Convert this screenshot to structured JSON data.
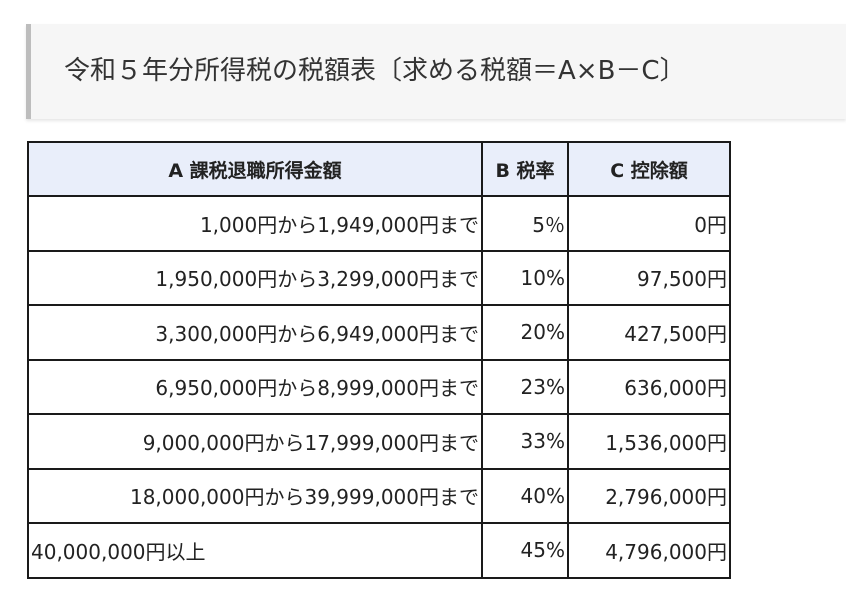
{
  "title": "令和５年分所得税の税額表〔求める税額＝A×B－C〕",
  "table": {
    "headers": [
      "A 課税退職所得金額",
      "B 税率",
      "C 控除額"
    ],
    "rows": [
      {
        "range": "1,000円から1,949,000円まで",
        "rate": "5％",
        "deduction": "0円"
      },
      {
        "range": "1,950,000円から3,299,000円まで",
        "rate": "10%",
        "deduction": "97,500円"
      },
      {
        "range": "3,300,000円から6,949,000円まで",
        "rate": "20%",
        "deduction": "427,500円"
      },
      {
        "range": "6,950,000円から8,999,000円まで",
        "rate": "23%",
        "deduction": "636,000円"
      },
      {
        "range": "9,000,000円から17,999,000円まで",
        "rate": "33%",
        "deduction": "1,536,000円"
      },
      {
        "range": "18,000,000円から39,999,000円まで",
        "rate": "40%",
        "deduction": "2,796,000円"
      },
      {
        "range": "40,000,000円以上",
        "rate": "45%",
        "deduction": "4,796,000円"
      }
    ]
  },
  "colors": {
    "header_background": "#e9eefa",
    "title_background": "#f6f6f6",
    "title_accent_border": "#bdbdbd",
    "table_border": "#1a1a1a"
  }
}
